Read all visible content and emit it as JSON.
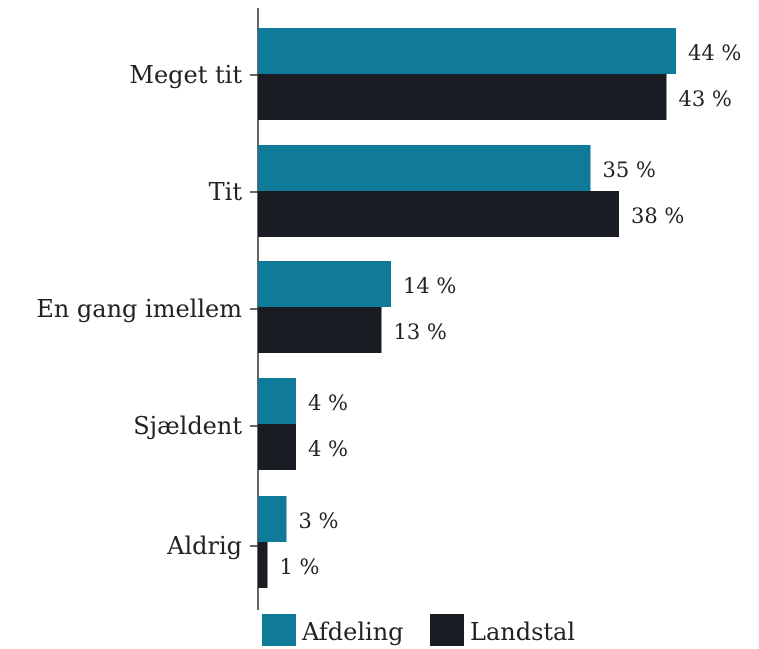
{
  "chart_data": {
    "type": "bar",
    "orientation": "horizontal",
    "categories": [
      "Meget tit",
      "Tit",
      "En gang imellem",
      "Sjældent",
      "Aldrig"
    ],
    "series": [
      {
        "name": "Afdeling",
        "values": [
          44,
          35,
          14,
          4,
          3
        ],
        "labels": [
          "44 %",
          "35 %",
          "14 %",
          "4 %",
          "3 %"
        ]
      },
      {
        "name": "Landstal",
        "values": [
          43,
          38,
          13,
          4,
          1
        ],
        "labels": [
          "43 %",
          "38 %",
          "13 %",
          "4 %",
          "1 %"
        ]
      }
    ],
    "colors": [
      "#0f7b98",
      "#1a1c24"
    ],
    "xlim": [
      0,
      44
    ],
    "legend": "bottom",
    "grid": false
  }
}
